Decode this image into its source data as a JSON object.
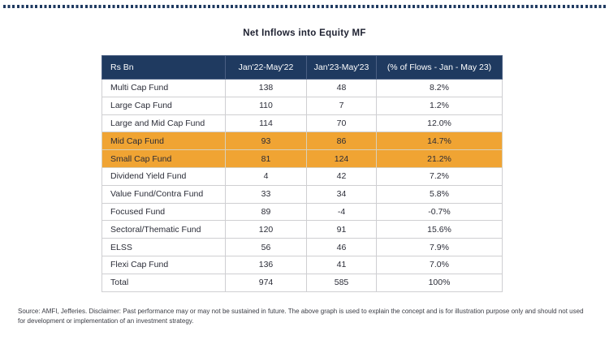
{
  "title": "Net Inflows into Equity MF",
  "colors": {
    "header_bg": "#1f3a60",
    "header_text": "#ffffff",
    "highlight_orange": "#f0a433",
    "body_text": "#2b2d38",
    "border": "#cfcfd2",
    "dotted_line": "#1f3a60"
  },
  "table": {
    "headers": [
      "Rs Bn",
      "Jan'22-May'22",
      "Jan'23-May'23",
      "(% of Flows - Jan - May 23)"
    ],
    "rows": [
      {
        "name": "Multi Cap Fund",
        "jan22_may22": "138",
        "jan23_may23": "48",
        "pct_flows": "8.2%",
        "highlight": false
      },
      {
        "name": "Large Cap Fund",
        "jan22_may22": "110",
        "jan23_may23": "7",
        "pct_flows": "1.2%",
        "highlight": false
      },
      {
        "name": "Large and Mid Cap Fund",
        "jan22_may22": "114",
        "jan23_may23": "70",
        "pct_flows": "12.0%",
        "highlight": false
      },
      {
        "name": "Mid Cap Fund",
        "jan22_may22": "93",
        "jan23_may23": "86",
        "pct_flows": "14.7%",
        "highlight": true
      },
      {
        "name": "Small Cap Fund",
        "jan22_may22": "81",
        "jan23_may23": "124",
        "pct_flows": "21.2%",
        "highlight": true
      },
      {
        "name": "Dividend Yield Fund",
        "jan22_may22": "4",
        "jan23_may23": "42",
        "pct_flows": "7.2%",
        "highlight": false
      },
      {
        "name": "Value Fund/Contra Fund",
        "jan22_may22": "33",
        "jan23_may23": "34",
        "pct_flows": "5.8%",
        "highlight": false
      },
      {
        "name": "Focused Fund",
        "jan22_may22": "89",
        "jan23_may23": "-4",
        "pct_flows": "-0.7%",
        "highlight": false
      },
      {
        "name": "Sectoral/Thematic Fund",
        "jan22_may22": "120",
        "jan23_may23": "91",
        "pct_flows": "15.6%",
        "highlight": false
      },
      {
        "name": "ELSS",
        "jan22_may22": "56",
        "jan23_may23": "46",
        "pct_flows": "7.9%",
        "highlight": false
      },
      {
        "name": "Flexi Cap Fund",
        "jan22_may22": "136",
        "jan23_may23": "41",
        "pct_flows": "7.0%",
        "highlight": false
      },
      {
        "name": "Total",
        "jan22_may22": "974",
        "jan23_may23": "585",
        "pct_flows": "100%",
        "highlight": false
      }
    ]
  },
  "footer": "Source: AMFI, Jefferies. Disclaimer: Past performance may or may not be sustained in future. The above graph is used to explain the concept and is for illustration purpose only and should not used for development or implementation of an investment strategy.",
  "chart_data": {
    "type": "table",
    "title": "Net Inflows into Equity MF",
    "columns": [
      "Rs Bn",
      "Jan'22-May'22",
      "Jan'23-May'23",
      "(% of Flows - Jan - May 23)"
    ],
    "rows": [
      [
        "Multi Cap Fund",
        138,
        48,
        "8.2%"
      ],
      [
        "Large Cap Fund",
        110,
        7,
        "1.2%"
      ],
      [
        "Large and Mid Cap Fund",
        114,
        70,
        "12.0%"
      ],
      [
        "Mid Cap Fund",
        93,
        86,
        "14.7%"
      ],
      [
        "Small Cap Fund",
        81,
        124,
        "21.2%"
      ],
      [
        "Dividend Yield Fund",
        4,
        42,
        "7.2%"
      ],
      [
        "Value Fund/Contra Fund",
        33,
        34,
        "5.8%"
      ],
      [
        "Focused Fund",
        89,
        -4,
        "-0.7%"
      ],
      [
        "Sectoral/Thematic Fund",
        120,
        91,
        "15.6%"
      ],
      [
        "ELSS",
        56,
        46,
        "7.9%"
      ],
      [
        "Flexi Cap Fund",
        136,
        41,
        "7.0%"
      ],
      [
        "Total",
        974,
        585,
        "100%"
      ]
    ],
    "highlighted_rows": [
      "Mid Cap Fund",
      "Small Cap Fund"
    ],
    "units": "Rs Bn"
  }
}
